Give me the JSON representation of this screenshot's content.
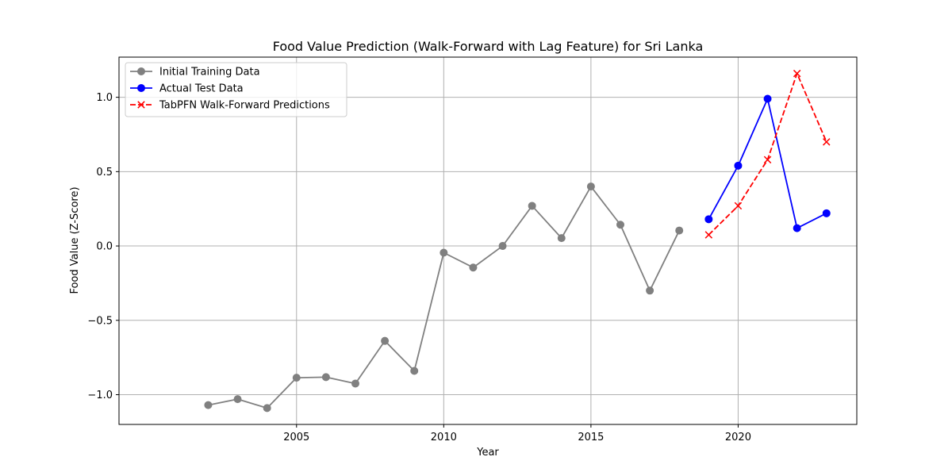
{
  "chart_data": {
    "type": "line",
    "title": "Food Value Prediction (Walk-Forward with Lag Feature) for Sri Lanka",
    "xlabel": "Year",
    "ylabel": "Food Value (Z-Score)",
    "xlim": [
      2002,
      2024
    ],
    "ylim": [
      -1.2,
      1.27
    ],
    "xticks": [
      2005,
      2010,
      2015,
      2020
    ],
    "yticks": [
      -1.0,
      -0.5,
      0.0,
      0.5,
      1.0
    ],
    "xtick_labels": [
      "2005",
      "2010",
      "2015",
      "2020"
    ],
    "ytick_labels": [
      "−1.0",
      "−0.5",
      "0.0",
      "0.5",
      "1.0"
    ],
    "grid": true,
    "legend_position": "upper-left",
    "series": [
      {
        "name": "Initial Training Data",
        "color": "#808080",
        "line_style": "solid",
        "marker": "circle",
        "x": [
          2002,
          2003,
          2004,
          2005,
          2006,
          2007,
          2008,
          2009,
          2010,
          2011,
          2012,
          2013,
          2014,
          2015,
          2016,
          2017,
          2018
        ],
        "y": [
          -1.07,
          -1.03,
          -1.09,
          -0.886,
          -0.882,
          -0.925,
          -0.638,
          -0.84,
          -0.045,
          -0.145,
          0.0,
          0.27,
          0.053,
          0.4,
          0.143,
          -0.3,
          0.104
        ]
      },
      {
        "name": "Actual Test Data",
        "color": "#0000ff",
        "line_style": "solid",
        "marker": "circle",
        "x": [
          2019,
          2020,
          2021,
          2022,
          2023
        ],
        "y": [
          0.18,
          0.54,
          0.99,
          0.12,
          0.22
        ]
      },
      {
        "name": "TabPFN Walk-Forward Predictions",
        "color": "#ff0000",
        "line_style": "dashed",
        "marker": "x",
        "x": [
          2019,
          2020,
          2021,
          2022,
          2023
        ],
        "y": [
          0.075,
          0.27,
          0.58,
          1.16,
          0.7
        ]
      }
    ]
  }
}
